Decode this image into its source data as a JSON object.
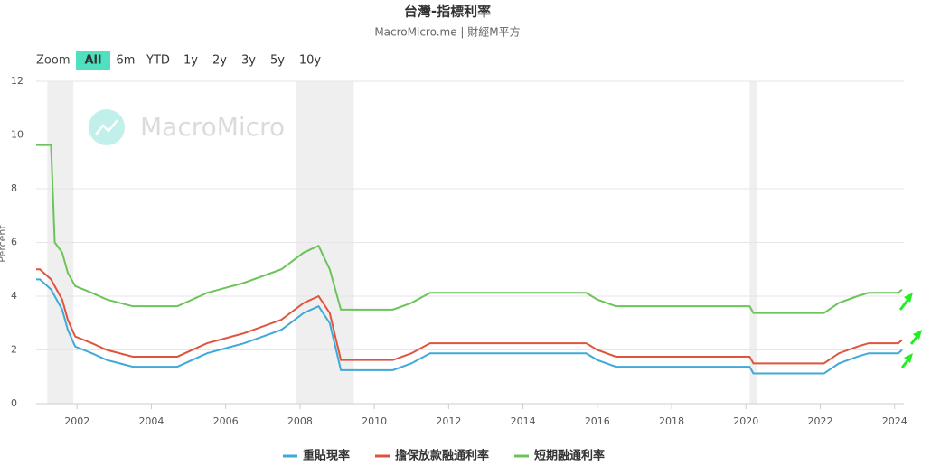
{
  "chart_data": {
    "type": "line",
    "title": "台灣-指標利率",
    "subtitle": "MacroMicro.me | 財經M平方",
    "watermark": "MacroMicro",
    "y_label": "Percent",
    "range_selector": {
      "label": "Zoom",
      "buttons": [
        "All",
        "6m",
        "YTD",
        "1y",
        "2y",
        "3y",
        "5y",
        "10y"
      ],
      "selected": 0
    },
    "x": [
      2000.9,
      2001.0,
      2001.3,
      2001.4,
      2001.6,
      2001.75,
      2001.95,
      2002.4,
      2002.8,
      2003.5,
      2004.7,
      2005.5,
      2006.5,
      2007.5,
      2008.1,
      2008.5,
      2008.8,
      2009.1,
      2010.5,
      2011.0,
      2011.5,
      2015.7,
      2016.0,
      2016.5,
      2020.1,
      2020.2,
      2022.1,
      2022.5,
      2023.0,
      2023.3,
      2024.1,
      2024.2
    ],
    "series": [
      {
        "name": "重貼現率",
        "color": "#3fa9d8",
        "values": [
          4.625,
          4.625,
          4.25,
          4.0,
          3.5,
          2.75,
          2.125,
          1.875,
          1.625,
          1.375,
          1.375,
          1.875,
          2.25,
          2.75,
          3.375,
          3.625,
          3.0,
          1.25,
          1.25,
          1.5,
          1.875,
          1.875,
          1.625,
          1.375,
          1.375,
          1.125,
          1.125,
          1.5,
          1.75,
          1.875,
          1.875,
          2.0
        ]
      },
      {
        "name": "擔保放款融通利率",
        "color": "#e0533c",
        "values": [
          5.0,
          5.0,
          4.625,
          4.375,
          3.875,
          3.125,
          2.5,
          2.25,
          2.0,
          1.75,
          1.75,
          2.25,
          2.625,
          3.125,
          3.75,
          4.0,
          3.375,
          1.625,
          1.625,
          1.875,
          2.25,
          2.25,
          2.0,
          1.75,
          1.75,
          1.5,
          1.5,
          1.875,
          2.125,
          2.25,
          2.25,
          2.375
        ]
      },
      {
        "name": "短期融通利率",
        "color": "#6cc35a",
        "values": [
          9.625,
          9.625,
          9.625,
          6.0,
          5.625,
          4.875,
          4.375,
          4.125,
          3.875,
          3.625,
          3.625,
          4.125,
          4.5,
          5.0,
          5.625,
          5.875,
          5.0,
          3.5,
          3.5,
          3.75,
          4.125,
          4.125,
          3.875,
          3.625,
          3.625,
          3.375,
          3.375,
          3.75,
          4.0,
          4.125,
          4.125,
          4.25
        ]
      }
    ],
    "shaded_ranges": [
      [
        2001.2,
        2001.9
      ],
      [
        2007.9,
        2009.45
      ],
      [
        2020.1,
        2020.3
      ]
    ],
    "xlim": [
      2000.9,
      2024.25
    ],
    "xticks": [
      2002,
      2004,
      2006,
      2008,
      2010,
      2012,
      2014,
      2016,
      2018,
      2020,
      2022,
      2024
    ],
    "ylim": [
      0,
      12
    ],
    "yticks": [
      0,
      2,
      4,
      6,
      8,
      10,
      12
    ],
    "grid": true,
    "legend": "bottom"
  }
}
